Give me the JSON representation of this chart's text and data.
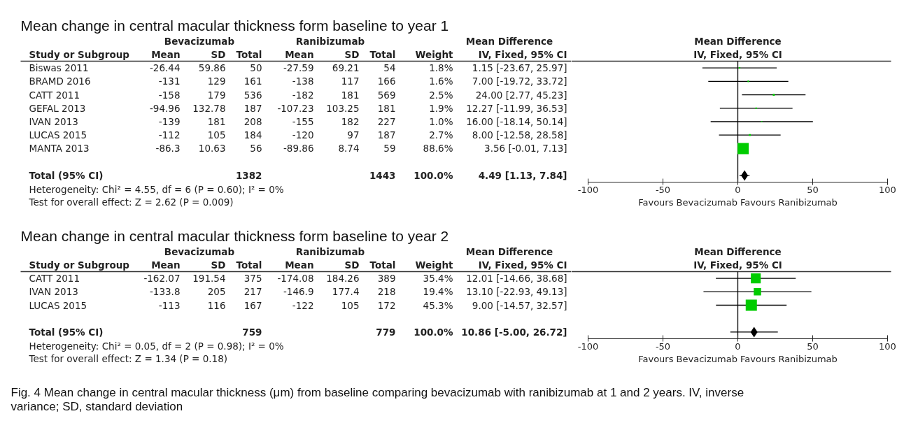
{
  "chart_data": [
    {
      "type": "other",
      "title": "Mean change in central macular thickness form baseline to year 1",
      "ylabel": "Study or Subgroup",
      "categories": [
        "Biswas 2011",
        "BRAMD 2016",
        "CATT 2011",
        "GEFAL 2013",
        "IVAN 2013",
        "LUCAS 2015",
        "MANTA 2013",
        null,
        "Total (95% CI)"
      ],
      "series": [
        {
          "name": "Mean",
          "values": [
            -26.44,
            -131,
            -158,
            -94.96,
            -139,
            -112,
            -86.3,
            null,
            null
          ],
          "value_labels": [
            "-26.44",
            "-131",
            "-158",
            "-94.96",
            "-139",
            "-112",
            "-86.3",
            null,
            null
          ]
        },
        {
          "name": "SD",
          "values": [
            59.86,
            129,
            179,
            132.78,
            181,
            105,
            10.63,
            null,
            null
          ],
          "value_labels": [
            "59.86",
            "129",
            "179",
            "132.78",
            "181",
            "105",
            "10.63",
            null,
            null
          ]
        },
        {
          "name": "Total",
          "values": [
            50,
            161,
            536,
            187,
            208,
            184,
            56,
            null,
            1382
          ],
          "value_labels": [
            "50",
            "161",
            "536",
            "187",
            "208",
            "184",
            "56",
            null,
            "1382"
          ]
        },
        {
          "name": "Mean",
          "values": [
            -27.59,
            -138,
            -182,
            -107.23,
            -155,
            -120,
            -89.86,
            null,
            null
          ],
          "value_labels": [
            "-27.59",
            "-138",
            "-182",
            "-107.23",
            "-155",
            "-120",
            "-89.86",
            null,
            null
          ]
        },
        {
          "name": "SD",
          "values": [
            69.21,
            117,
            181,
            103.25,
            182,
            97,
            8.74,
            null,
            null
          ],
          "value_labels": [
            "69.21",
            "117",
            "181",
            "103.25",
            "182",
            "97",
            "8.74",
            null,
            null
          ]
        },
        {
          "name": "Total",
          "values": [
            54,
            166,
            569,
            181,
            227,
            187,
            59,
            null,
            1443
          ],
          "value_labels": [
            "54",
            "166",
            "569",
            "181",
            "227",
            "187",
            "59",
            null,
            "1443"
          ]
        },
        {
          "name": "Weight",
          "values": [
            1.8,
            1.6,
            2.5,
            1.9,
            1.0,
            2.7,
            88.6,
            null,
            100.0
          ],
          "value_labels": [
            "1.8%",
            "1.6%",
            "2.5%",
            "1.9%",
            "1.0%",
            "2.7%",
            "88.6%",
            null,
            "100.0%"
          ]
        },
        {
          "name": "IV, Fixed, 95% CI",
          "values": [
            1.15,
            7.0,
            24.0,
            12.27,
            16.0,
            8.0,
            3.56,
            null,
            4.49
          ],
          "value_labels": [
            "1.15 [-23.67, 25.97]",
            "7.00 [-19.72, 33.72]",
            "24.00 [2.77, 45.23]",
            "12.27 [-11.99, 36.53]",
            "16.00 [-18.14, 50.14]",
            "8.00 [-12.58, 28.58]",
            "3.56 [-0.01, 7.13]",
            null,
            "4.49 [1.13, 7.84]"
          ]
        }
      ],
      "annotations": [
        "Bevacizumab",
        "Ranibizumab",
        "Mean Difference",
        "Heterogeneity: Chi² = 4.55, df = 6 (P = 0.60); I² = 0%",
        "Test for overall effect: Z = 2.62 (P = 0.009)"
      ]
    },
    {
      "type": "bubble",
      "orientation": "horizontal",
      "annotations": [
        "Mean Difference",
        "IV, Fixed, 95% CI"
      ],
      "categories": [
        null,
        null,
        null,
        null,
        null,
        null,
        null,
        null,
        null
      ],
      "series": [
        {
          "color": "#00cc00",
          "marker": "square",
          "values": [
            1.15,
            7.0,
            24.0,
            12.27,
            16.0,
            8.0,
            3.56,
            null,
            null
          ],
          "errors": [
            [
              -23.67,
              25.97
            ],
            [
              -19.72,
              33.72
            ],
            [
              2.77,
              45.23
            ],
            [
              -11.99,
              36.53
            ],
            [
              -18.14,
              50.14
            ],
            [
              -12.58,
              28.58
            ],
            null,
            null,
            null
          ],
          "sizes": [
            0.02,
            0.02,
            0.03,
            0.02,
            0.01,
            0.03,
            1,
            null,
            null
          ]
        },
        {
          "color": "#000000",
          "marker": "diamond",
          "values": [
            null,
            null,
            null,
            null,
            null,
            null,
            null,
            null,
            4.49
          ],
          "errors": [
            null,
            null,
            null,
            null,
            null,
            null,
            null,
            null,
            [
              1.13,
              7.84
            ]
          ]
        }
      ],
      "xlim": [
        -100,
        100
      ],
      "xticks": [
        -100,
        -50,
        0,
        50,
        100
      ],
      "xlabel": "Favours Bevacizumab Favours Ranibizumab",
      "ref_lines": [
        {
          "axis": "x",
          "value": 0,
          "color": "#000000"
        }
      ],
      "tick_labels": "x"
    },
    {
      "type": "other",
      "title": "Mean change in central macular thickness form baseline to year 2",
      "ylabel": "Study or Subgroup",
      "categories": [
        "CATT 2011",
        "IVAN 2013",
        "LUCAS 2015",
        null,
        "Total (95% CI)"
      ],
      "series": [
        {
          "name": "Mean",
          "values": [
            -162.07,
            -133.8,
            -113,
            null,
            null
          ],
          "value_labels": [
            "-162.07",
            "-133.8",
            "-113",
            null,
            null
          ]
        },
        {
          "name": "SD",
          "values": [
            191.54,
            205,
            116,
            null,
            null
          ],
          "value_labels": [
            "191.54",
            "205",
            "116",
            null,
            null
          ]
        },
        {
          "name": "Total",
          "values": [
            375,
            217,
            167,
            null,
            759
          ],
          "value_labels": [
            "375",
            "217",
            "167",
            null,
            "759"
          ]
        },
        {
          "name": "Mean",
          "values": [
            -174.08,
            -146.9,
            -122,
            null,
            null
          ],
          "value_labels": [
            "-174.08",
            "-146.9",
            "-122",
            null,
            null
          ]
        },
        {
          "name": "SD",
          "values": [
            184.26,
            177.4,
            105,
            null,
            null
          ],
          "value_labels": [
            "184.26",
            "177.4",
            "105",
            null,
            null
          ]
        },
        {
          "name": "Total",
          "values": [
            389,
            218,
            172,
            null,
            779
          ],
          "value_labels": [
            "389",
            "218",
            "172",
            null,
            "779"
          ]
        },
        {
          "name": "Weight",
          "values": [
            35.4,
            19.4,
            45.3,
            null,
            100.0
          ],
          "value_labels": [
            "35.4%",
            "19.4%",
            "45.3%",
            null,
            "100.0%"
          ]
        },
        {
          "name": "IV, Fixed, 95% CI",
          "values": [
            12.01,
            13.1,
            9.0,
            null,
            10.86
          ],
          "value_labels": [
            "12.01 [-14.66, 38.68]",
            "13.10 [-22.93, 49.13]",
            "9.00 [-14.57, 32.57]",
            null,
            "10.86 [-5.00, 26.72]"
          ]
        }
      ],
      "annotations": [
        "Bevacizumab",
        "Ranibizumab",
        "Mean Difference",
        "Heterogeneity: Chi² = 0.05, df = 2 (P = 0.98); I² = 0%",
        "Test for overall effect: Z = 1.34 (P = 0.18)"
      ]
    },
    {
      "type": "bubble",
      "orientation": "horizontal",
      "annotations": [
        "Mean Difference",
        "IV, Fixed, 95% CI"
      ],
      "categories": [
        null,
        null,
        null,
        null,
        null
      ],
      "series": [
        {
          "color": "#00cc00",
          "marker": "square",
          "values": [
            12.01,
            13.1,
            9.0,
            null,
            null
          ],
          "errors": [
            [
              -14.66,
              38.68
            ],
            [
              -22.93,
              49.13
            ],
            [
              -14.57,
              32.57
            ],
            null,
            null
          ],
          "sizes": [
            0.78,
            0.43,
            1,
            null,
            null
          ]
        },
        {
          "color": "#000000",
          "marker": "diamond",
          "values": [
            null,
            null,
            null,
            null,
            10.86
          ],
          "errors": [
            null,
            null,
            null,
            null,
            [
              -5.0,
              26.72
            ]
          ]
        }
      ],
      "xlim": [
        -100,
        100
      ],
      "xticks": [
        -100,
        -50,
        0,
        50,
        100
      ],
      "xlabel": "Favours Bevacizumab Favours Ranibizumab",
      "ref_lines": [
        {
          "axis": "x",
          "value": 0,
          "color": "#000000"
        }
      ],
      "tick_labels": "x"
    },
    {
      "type": "other",
      "annotations": [
        "Fig. 4 Mean change in central macular thickness (μm) from baseline comparing bevacizumab with ranibizumab at 1 and 2 years. IV, inverse variance; SD, standard deviation"
      ]
    }
  ]
}
